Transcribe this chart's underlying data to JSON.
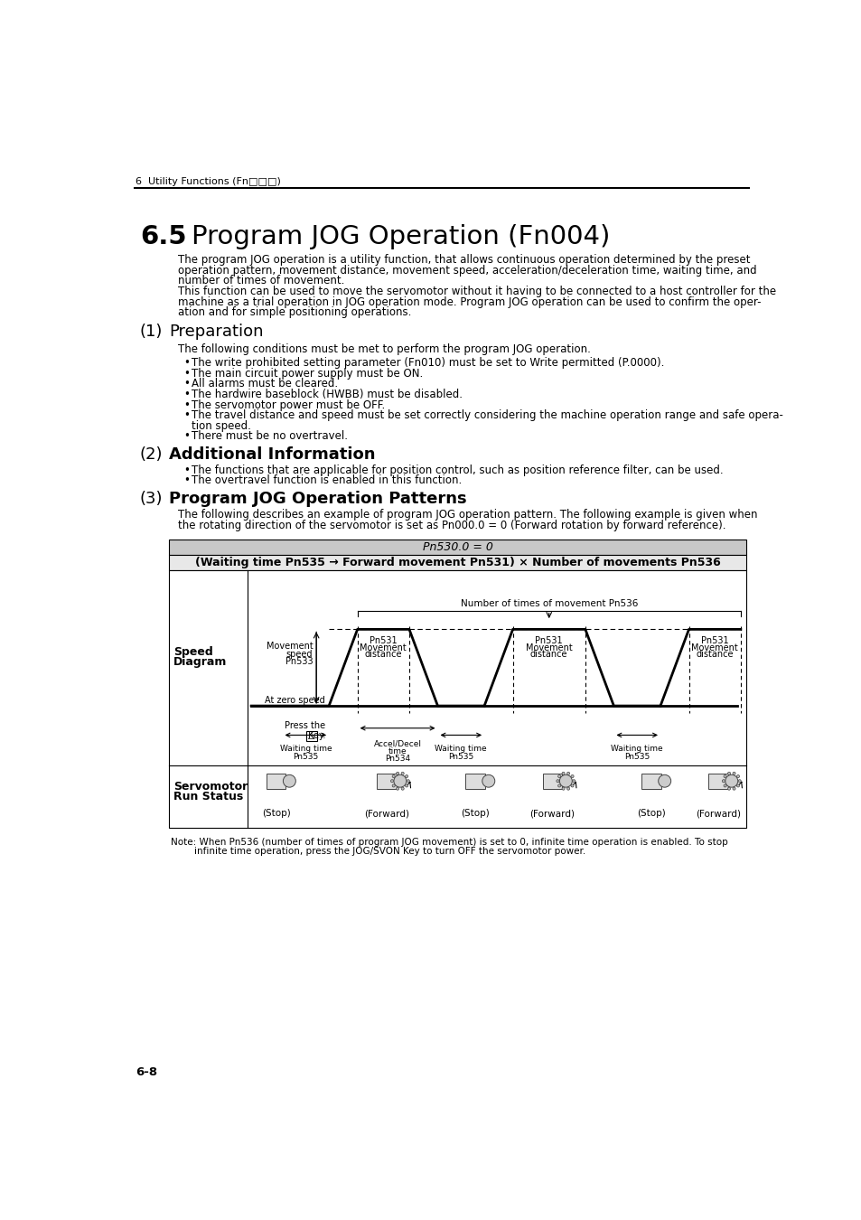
{
  "page_title": "6  Utility Functions (Fn□□□)",
  "section_num": "6.5",
  "section_title": "Program JOG Operation (Fn004)",
  "intro_lines": [
    "The program JOG operation is a utility function, that allows continuous operation determined by the preset",
    "operation pattern, movement distance, movement speed, acceleration/deceleration time, waiting time, and",
    "number of times of movement.",
    "This function can be used to move the servomotor without it having to be connected to a host controller for the",
    "machine as a trial operation in JOG operation mode. Program JOG operation can be used to confirm the oper-",
    "ation and for simple positioning operations."
  ],
  "sub1_num": "(1)",
  "sub1_title": "Preparation",
  "prep_intro": "The following conditions must be met to perform the program JOG operation.",
  "prep_bullets": [
    "The write prohibited setting parameter (Fn010) must be set to Write permitted (P.0000).",
    "The main circuit power supply must be ON.",
    "All alarms must be cleared.",
    "The hardwire baseblock (HWBB) must be disabled.",
    "The servomotor power must be OFF.",
    "The travel distance and speed must be set correctly considering the machine operation range and safe opera-",
    "There must be no overtravel."
  ],
  "prep_bullet6_cont": "tion speed.",
  "sub2_num": "(2)",
  "sub2_title": "Additional Information",
  "add_bullets": [
    "The functions that are applicable for position control, such as position reference filter, can be used.",
    "The overtravel function is enabled in this function."
  ],
  "sub3_num": "(3)",
  "sub3_title": "Program JOG Operation Patterns",
  "pattern_lines": [
    "The following describes an example of program JOG operation pattern. The following example is given when",
    "the rotating direction of the servomotor is set as Pn000.0 = 0 (Forward rotation by forward reference)."
  ],
  "diag_header1": "Pn530.0 = 0",
  "diag_header2": "(Waiting time Pn535 → Forward movement Pn531) × Number of movements Pn536",
  "note_line1": "Note: When Pn536 (number of times of program JOG movement) is set to 0, infinite time operation is enabled. To stop",
  "note_line2": "        infinite time operation, press the JOG/SVON Key to turn OFF the servomotor power.",
  "page_num": "6-8"
}
